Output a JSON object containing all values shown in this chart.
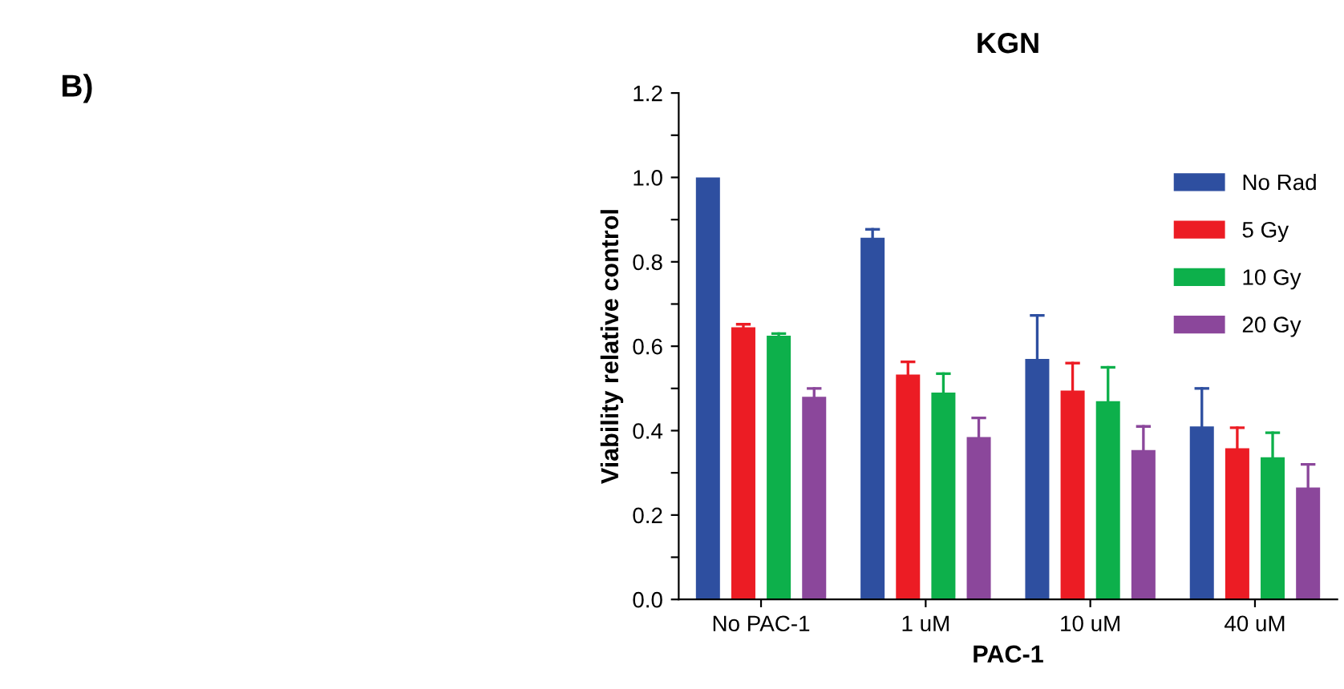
{
  "chart_data": {
    "type": "bar",
    "title": "KGN",
    "xlabel": "PAC-1",
    "ylabel": "Viability relative control",
    "annotations": [
      "B)"
    ],
    "categories": [
      "No PAC-1",
      "1 uM",
      "10 uM",
      "40 uM"
    ],
    "series": [
      {
        "name": "No Rad",
        "color": "#2e4fa0",
        "values": [
          1.0,
          0.857,
          0.57,
          0.41
        ],
        "errors": [
          null,
          [
            0.857,
            0.877
          ],
          [
            0.57,
            0.673
          ],
          [
            0.41,
            0.5
          ]
        ]
      },
      {
        "name": "5 Gy",
        "color": "#ec1c24",
        "values": [
          0.645,
          0.533,
          0.495,
          0.358
        ],
        "errors": [
          [
            0.645,
            0.652
          ],
          [
            0.533,
            0.563
          ],
          [
            0.495,
            0.56
          ],
          [
            0.358,
            0.407
          ]
        ]
      },
      {
        "name": "10 Gy",
        "color": "#0db04b",
        "values": [
          0.625,
          0.49,
          0.47,
          0.337
        ],
        "errors": [
          [
            0.625,
            0.63
          ],
          [
            0.49,
            0.535
          ],
          [
            0.47,
            0.55
          ],
          [
            0.337,
            0.395
          ]
        ]
      },
      {
        "name": "20 Gy",
        "color": "#8b479b",
        "values": [
          0.48,
          0.385,
          0.354,
          0.265
        ],
        "errors": [
          [
            0.48,
            0.5
          ],
          [
            0.385,
            0.43
          ],
          [
            0.354,
            0.41
          ],
          [
            0.265,
            0.32
          ]
        ]
      }
    ],
    "ylim": [
      0,
      1.2
    ],
    "yticks": [
      {
        "value": 0,
        "label": "0.0"
      },
      {
        "value": 0.1,
        "label": null
      },
      0.2,
      {
        "value": 0.3,
        "label": null
      },
      0.4,
      {
        "value": 0.5,
        "label": null
      },
      0.6,
      {
        "value": 0.7,
        "label": null
      },
      0.8,
      {
        "value": 0.9,
        "label": null
      },
      {
        "value": 1,
        "label": "1.0"
      },
      {
        "value": 1.1,
        "label": null
      },
      1.2
    ],
    "grid": false,
    "legend": "top right"
  }
}
